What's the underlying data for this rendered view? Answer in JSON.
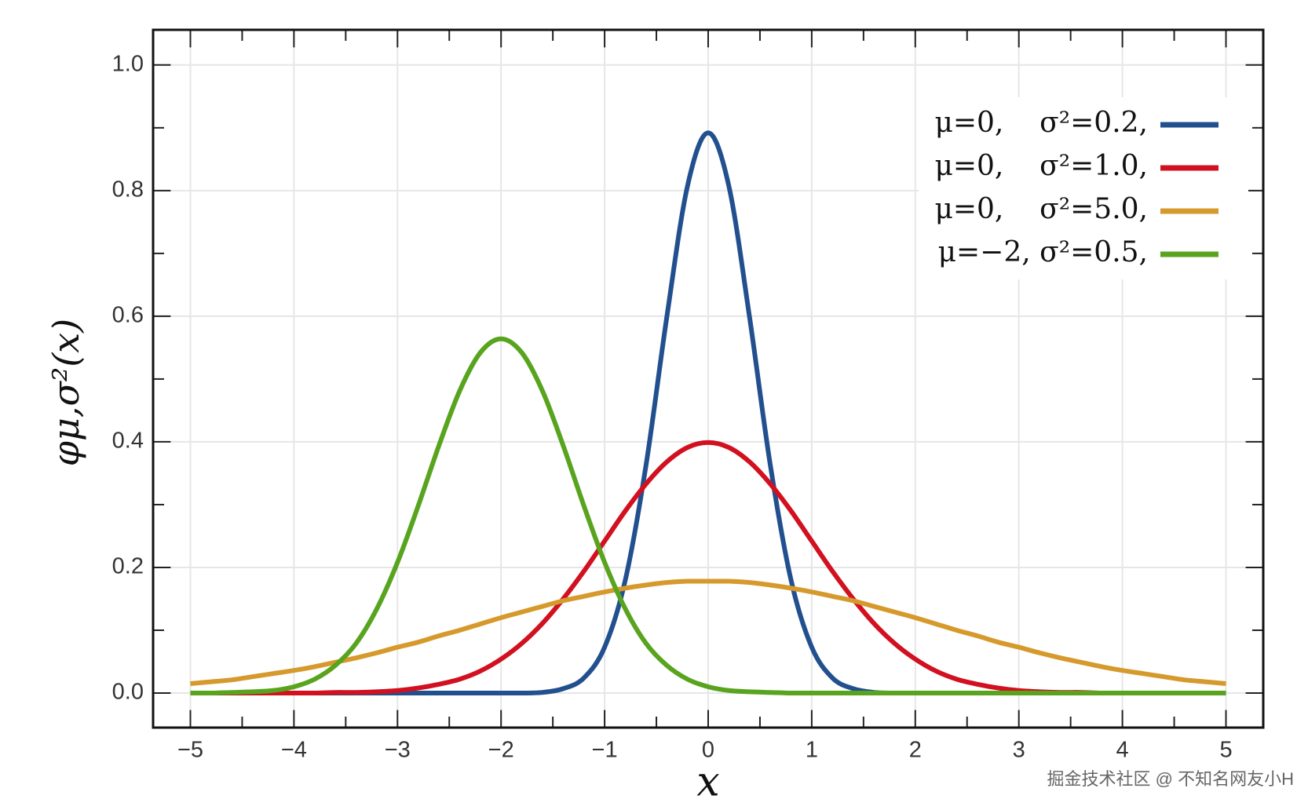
{
  "chart_data": {
    "type": "line",
    "ylabel": "φμ,σ²(x)",
    "xlabel": "x",
    "watermark": "掘金技术社区 @ 不知名网友小H",
    "x": [
      -5,
      -4.8,
      -4.6,
      -4.4,
      -4.2,
      -4,
      -3.8,
      -3.6,
      -3.4,
      -3.2,
      -3,
      -2.8,
      -2.6,
      -2.4,
      -2.2,
      -2,
      -1.8,
      -1.6,
      -1.4,
      -1.2,
      -1,
      -0.8,
      -0.6,
      -0.4,
      -0.2,
      0,
      0.2,
      0.4,
      0.6,
      0.8,
      1,
      1.2,
      1.4,
      1.6,
      1.8,
      2,
      2.2,
      2.4,
      2.6,
      2.8,
      3,
      3.2,
      3.4,
      3.6,
      3.8,
      4,
      4.2,
      4.4,
      4.6,
      4.8,
      5
    ],
    "series": [
      {
        "name": "μ=0,    σ²=0.2,",
        "color": "#22508f",
        "values": [
          0,
          0,
          0,
          0,
          0,
          0,
          0,
          0,
          0,
          0,
          0,
          0,
          0,
          0,
          0,
          0,
          0,
          0.001,
          0.007,
          0.024,
          0.073,
          0.18,
          0.363,
          0.598,
          0.807,
          0.892,
          0.807,
          0.598,
          0.363,
          0.18,
          0.073,
          0.024,
          0.007,
          0.001,
          0,
          0,
          0,
          0,
          0,
          0,
          0,
          0,
          0,
          0,
          0,
          0,
          0,
          0,
          0,
          0,
          0
        ]
      },
      {
        "name": "μ=0,    σ²=1.0,",
        "color": "#d2101f",
        "values": [
          0,
          0,
          0,
          0,
          0,
          0,
          0,
          0.001,
          0.001,
          0.002,
          0.004,
          0.008,
          0.014,
          0.022,
          0.035,
          0.054,
          0.079,
          0.111,
          0.15,
          0.194,
          0.242,
          0.29,
          0.333,
          0.368,
          0.391,
          0.399,
          0.391,
          0.368,
          0.333,
          0.29,
          0.242,
          0.194,
          0.15,
          0.111,
          0.079,
          0.054,
          0.035,
          0.022,
          0.014,
          0.008,
          0.004,
          0.002,
          0.001,
          0.001,
          0,
          0,
          0,
          0,
          0,
          0,
          0
        ]
      },
      {
        "name": "μ=0,    σ²=5.0,",
        "color": "#d6992c",
        "values": [
          0.015,
          0.018,
          0.021,
          0.026,
          0.031,
          0.036,
          0.042,
          0.049,
          0.056,
          0.064,
          0.073,
          0.081,
          0.091,
          0.1,
          0.11,
          0.12,
          0.129,
          0.138,
          0.147,
          0.154,
          0.161,
          0.167,
          0.172,
          0.176,
          0.178,
          0.178,
          0.178,
          0.176,
          0.172,
          0.167,
          0.161,
          0.154,
          0.147,
          0.138,
          0.129,
          0.12,
          0.11,
          0.1,
          0.091,
          0.081,
          0.073,
          0.064,
          0.056,
          0.049,
          0.042,
          0.036,
          0.031,
          0.026,
          0.021,
          0.018,
          0.015
        ]
      },
      {
        "name": "μ=−2, σ²=0.5,",
        "color": "#58a41e",
        "values": [
          0,
          0,
          0.001,
          0.002,
          0.004,
          0.01,
          0.022,
          0.044,
          0.079,
          0.134,
          0.208,
          0.298,
          0.394,
          0.481,
          0.542,
          0.564,
          0.542,
          0.481,
          0.394,
          0.298,
          0.208,
          0.134,
          0.079,
          0.044,
          0.022,
          0.01,
          0.004,
          0.002,
          0.001,
          0,
          0,
          0,
          0,
          0,
          0,
          0,
          0,
          0,
          0,
          0,
          0,
          0,
          0,
          0,
          0,
          0,
          0,
          0,
          0,
          0,
          0
        ]
      }
    ],
    "xlim": [
      -5.36,
      5.36
    ],
    "ylim": [
      -0.055,
      1.056
    ],
    "xticks": [
      {
        "value": -5,
        "label": "−5"
      },
      {
        "value": -4,
        "label": "−4"
      },
      {
        "value": -3,
        "label": "−3"
      },
      {
        "value": -2,
        "label": "−2"
      },
      {
        "value": -1,
        "label": "−1"
      },
      0,
      1,
      2,
      3,
      4,
      5
    ],
    "xminorticks": [
      -4.5,
      -3.5,
      -2.5,
      -1.5,
      -0.5,
      0.5,
      1.5,
      2.5,
      3.5,
      4.5
    ],
    "yticks": [
      {
        "value": 0,
        "label": "0.0"
      },
      0.2,
      0.4,
      0.6,
      0.8,
      {
        "value": 1,
        "label": "1.0"
      }
    ],
    "yminorticks": [
      0.1,
      0.3,
      0.5,
      0.7,
      0.9
    ],
    "grid": true,
    "legend": "upper right"
  }
}
